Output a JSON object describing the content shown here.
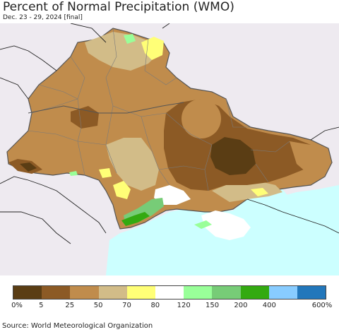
{
  "title": "Percent of Normal Precipitation (WMO)",
  "subtitle": "Dec. 23 - 29, 2024 [final]",
  "source": "Source: World Meteorological Organization",
  "map": {
    "background_color": "#eeeaf0",
    "sea_color": "#ccffff",
    "border_color": "#555555"
  },
  "legend": {
    "colors": [
      "#5a3d14",
      "#8c5a25",
      "#c08c4c",
      "#d2bc88",
      "#ffff77",
      "#ffffff",
      "#99ff99",
      "#77cc77",
      "#33aa11",
      "#88ccff",
      "#2277bb"
    ],
    "labels": [
      "0%",
      "5",
      "25",
      "50",
      "70",
      "80",
      "120",
      "150",
      "200",
      "400",
      "600%"
    ]
  }
}
